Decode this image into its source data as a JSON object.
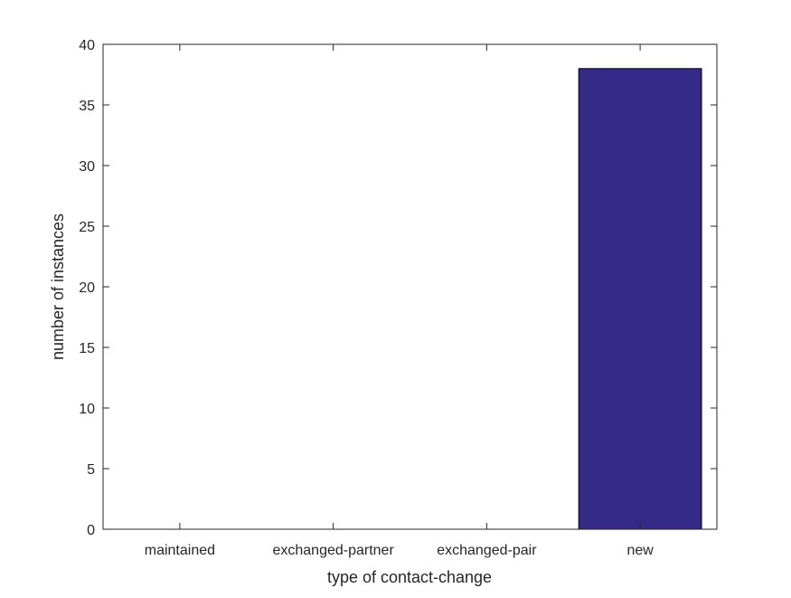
{
  "chart_data": {
    "type": "bar",
    "title": "",
    "xlabel": "type of contact-change",
    "ylabel": "number of instances",
    "categories": [
      "maintained",
      "exchanged-partner",
      "exchanged-pair",
      "new"
    ],
    "values": [
      0,
      0,
      0,
      38
    ],
    "ylim": [
      0,
      40
    ],
    "yticks": [
      0,
      5,
      10,
      15,
      20,
      25,
      30,
      35,
      40
    ],
    "grid": false,
    "bar_color": "#352a87",
    "edge_color": "#000000"
  }
}
